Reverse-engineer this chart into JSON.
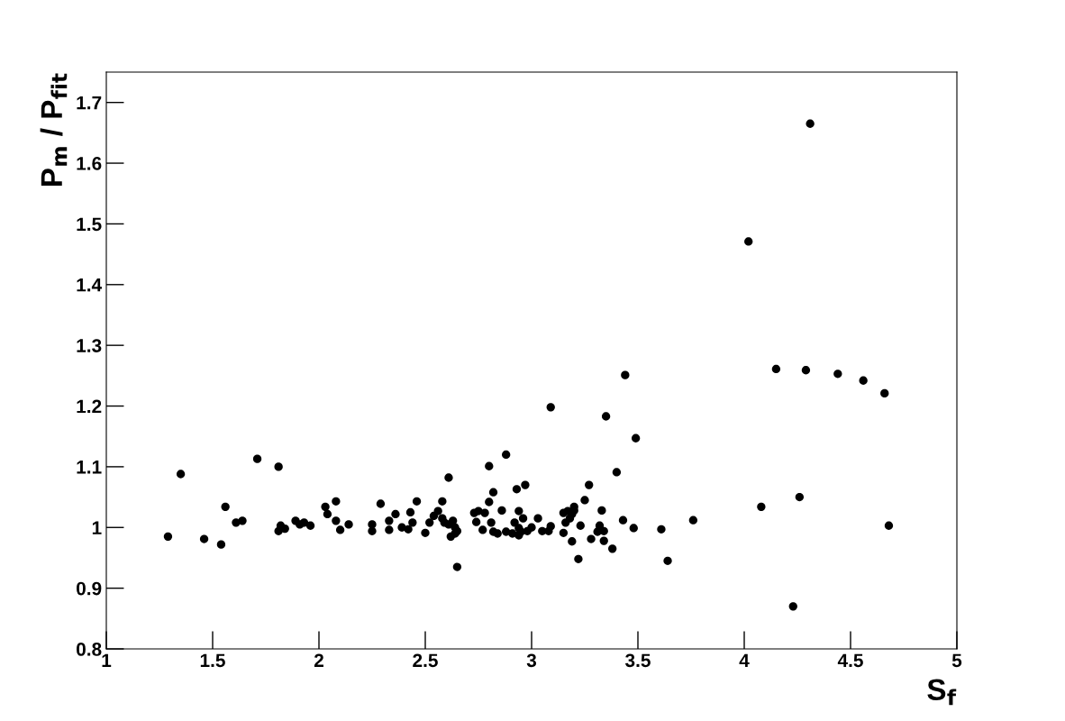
{
  "chart_data": {
    "type": "scatter",
    "xlabel": "S$_{f}$",
    "ylabel": "P$_{m}$ / P$_{fit}$",
    "marker": "circle",
    "grid": false,
    "xlim": [
      1,
      5
    ],
    "ylim": [
      0.8,
      1.75
    ],
    "xticks": [
      1,
      1.5,
      2,
      2.5,
      3,
      3.5,
      4,
      4.5,
      5
    ],
    "yticks": [
      0.8,
      0.9,
      1,
      1.1,
      1.2,
      1.3,
      1.4,
      1.5,
      1.6,
      1.7
    ],
    "series": [
      {
        "color": "#000000",
        "x": [
          1.29,
          1.35,
          1.46,
          1.54,
          1.56,
          1.61,
          1.64,
          1.71,
          1.81,
          1.81,
          1.82,
          1.84,
          1.89,
          1.91,
          1.93,
          1.96,
          2.03,
          2.04,
          2.08,
          2.08,
          2.1,
          2.14,
          2.25,
          2.25,
          2.29,
          2.33,
          2.33,
          2.36,
          2.39,
          2.42,
          2.43,
          2.44,
          2.46,
          2.5,
          2.52,
          2.54,
          2.56,
          2.58,
          2.59,
          2.61,
          2.58,
          2.61,
          2.62,
          2.64,
          2.65,
          2.63,
          2.64,
          2.65,
          2.74,
          2.77,
          2.73,
          2.75,
          2.78,
          2.8,
          2.8,
          2.81,
          2.82,
          2.84,
          2.82,
          2.86,
          2.88,
          2.88,
          2.91,
          2.92,
          2.94,
          2.95,
          2.94,
          2.93,
          2.94,
          2.96,
          2.97,
          2.98,
          3.0,
          3.03,
          3.05,
          3.08,
          3.09,
          3.09,
          3.15,
          3.17,
          3.16,
          3.18,
          3.19,
          3.2,
          3.2,
          3.15,
          3.19,
          3.22,
          3.23,
          3.25,
          3.27,
          3.28,
          3.31,
          3.32,
          3.33,
          3.34,
          3.34,
          3.35,
          3.44,
          3.38,
          3.4,
          3.43,
          3.49,
          3.48,
          3.64,
          3.61,
          3.76,
          4.02,
          4.08,
          4.26,
          4.68,
          4.15,
          4.29,
          4.44,
          4.56,
          4.66,
          4.31,
          4.23
        ],
        "values": [
          0.985,
          1.088,
          0.981,
          0.972,
          1.034,
          1.008,
          1.011,
          1.113,
          1.1,
          0.994,
          1.003,
          0.998,
          1.011,
          1.005,
          1.008,
          1.003,
          1.034,
          1.022,
          1.043,
          1.011,
          0.996,
          1.005,
          1.005,
          0.994,
          1.039,
          1.011,
          0.996,
          1.022,
          1.0,
          0.997,
          1.025,
          1.008,
          1.043,
          0.991,
          1.008,
          1.019,
          1.027,
          1.015,
          1.008,
          1.005,
          1.043,
          1.082,
          0.985,
          0.99,
          0.994,
          1.011,
          1.0,
          0.935,
          1.009,
          0.996,
          1.024,
          1.027,
          1.024,
          1.042,
          1.101,
          1.008,
          0.993,
          0.99,
          1.058,
          1.028,
          1.12,
          0.993,
          0.99,
          1.008,
          0.999,
          0.993,
          0.987,
          1.063,
          1.027,
          1.015,
          1.07,
          0.994,
          1.0,
          1.015,
          0.994,
          0.994,
          1.002,
          1.198,
          1.024,
          1.027,
          1.008,
          1.015,
          1.022,
          1.028,
          1.034,
          0.991,
          0.977,
          0.948,
          1.003,
          1.045,
          1.07,
          0.981,
          0.993,
          1.003,
          1.028,
          0.994,
          0.978,
          1.183,
          1.251,
          0.965,
          1.091,
          1.012,
          1.147,
          0.999,
          0.945,
          0.997,
          1.012,
          1.471,
          1.034,
          1.05,
          1.003,
          1.261,
          1.259,
          1.253,
          1.242,
          1.221,
          1.665,
          0.87
        ]
      }
    ]
  }
}
